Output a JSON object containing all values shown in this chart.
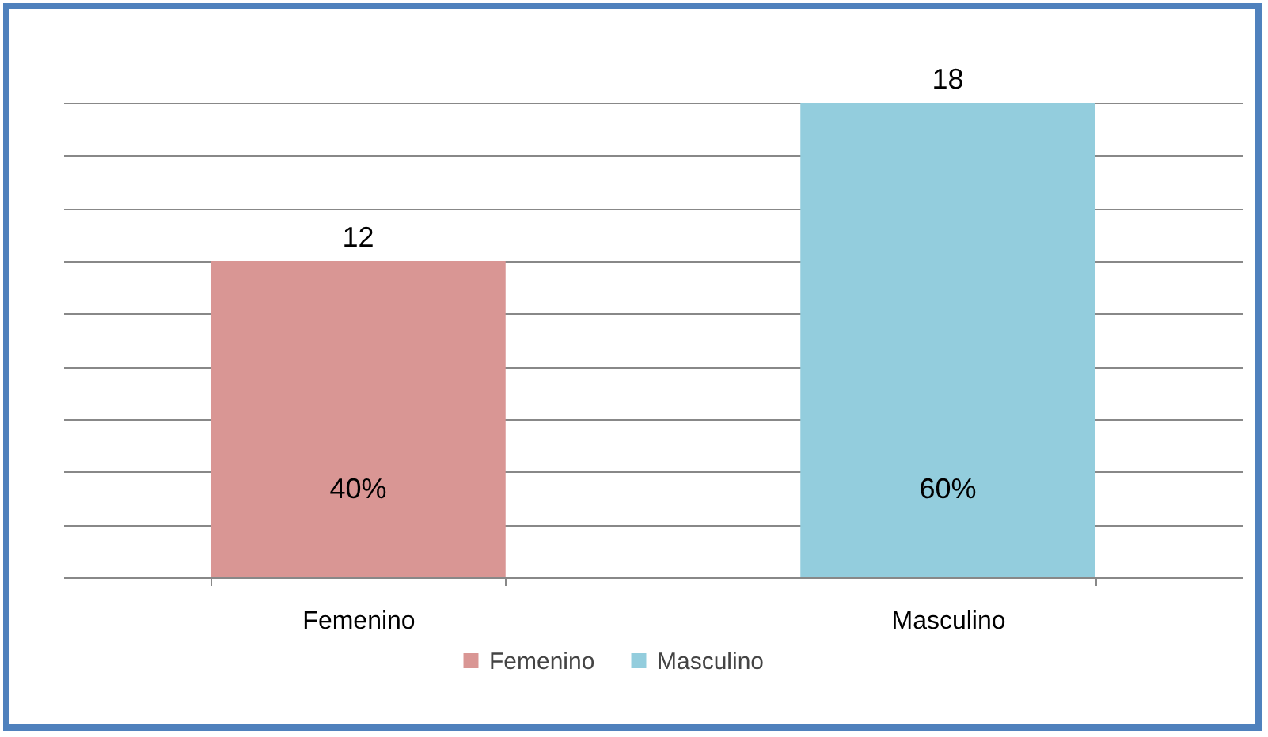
{
  "chart_data": {
    "type": "bar",
    "categories": [
      "Femenino",
      "Masculino"
    ],
    "stacked": true,
    "series": [
      {
        "name": "Femenino",
        "color": "#d99694",
        "values": [
          12,
          null
        ]
      },
      {
        "name": "Masculino",
        "color": "#93cddd",
        "values": [
          null,
          18
        ]
      }
    ],
    "grid": "y",
    "legend": "bottom",
    "data_labels": true,
    "tick_labels": "x",
    "annotations": [
      "40%",
      "60%"
    ]
  }
}
